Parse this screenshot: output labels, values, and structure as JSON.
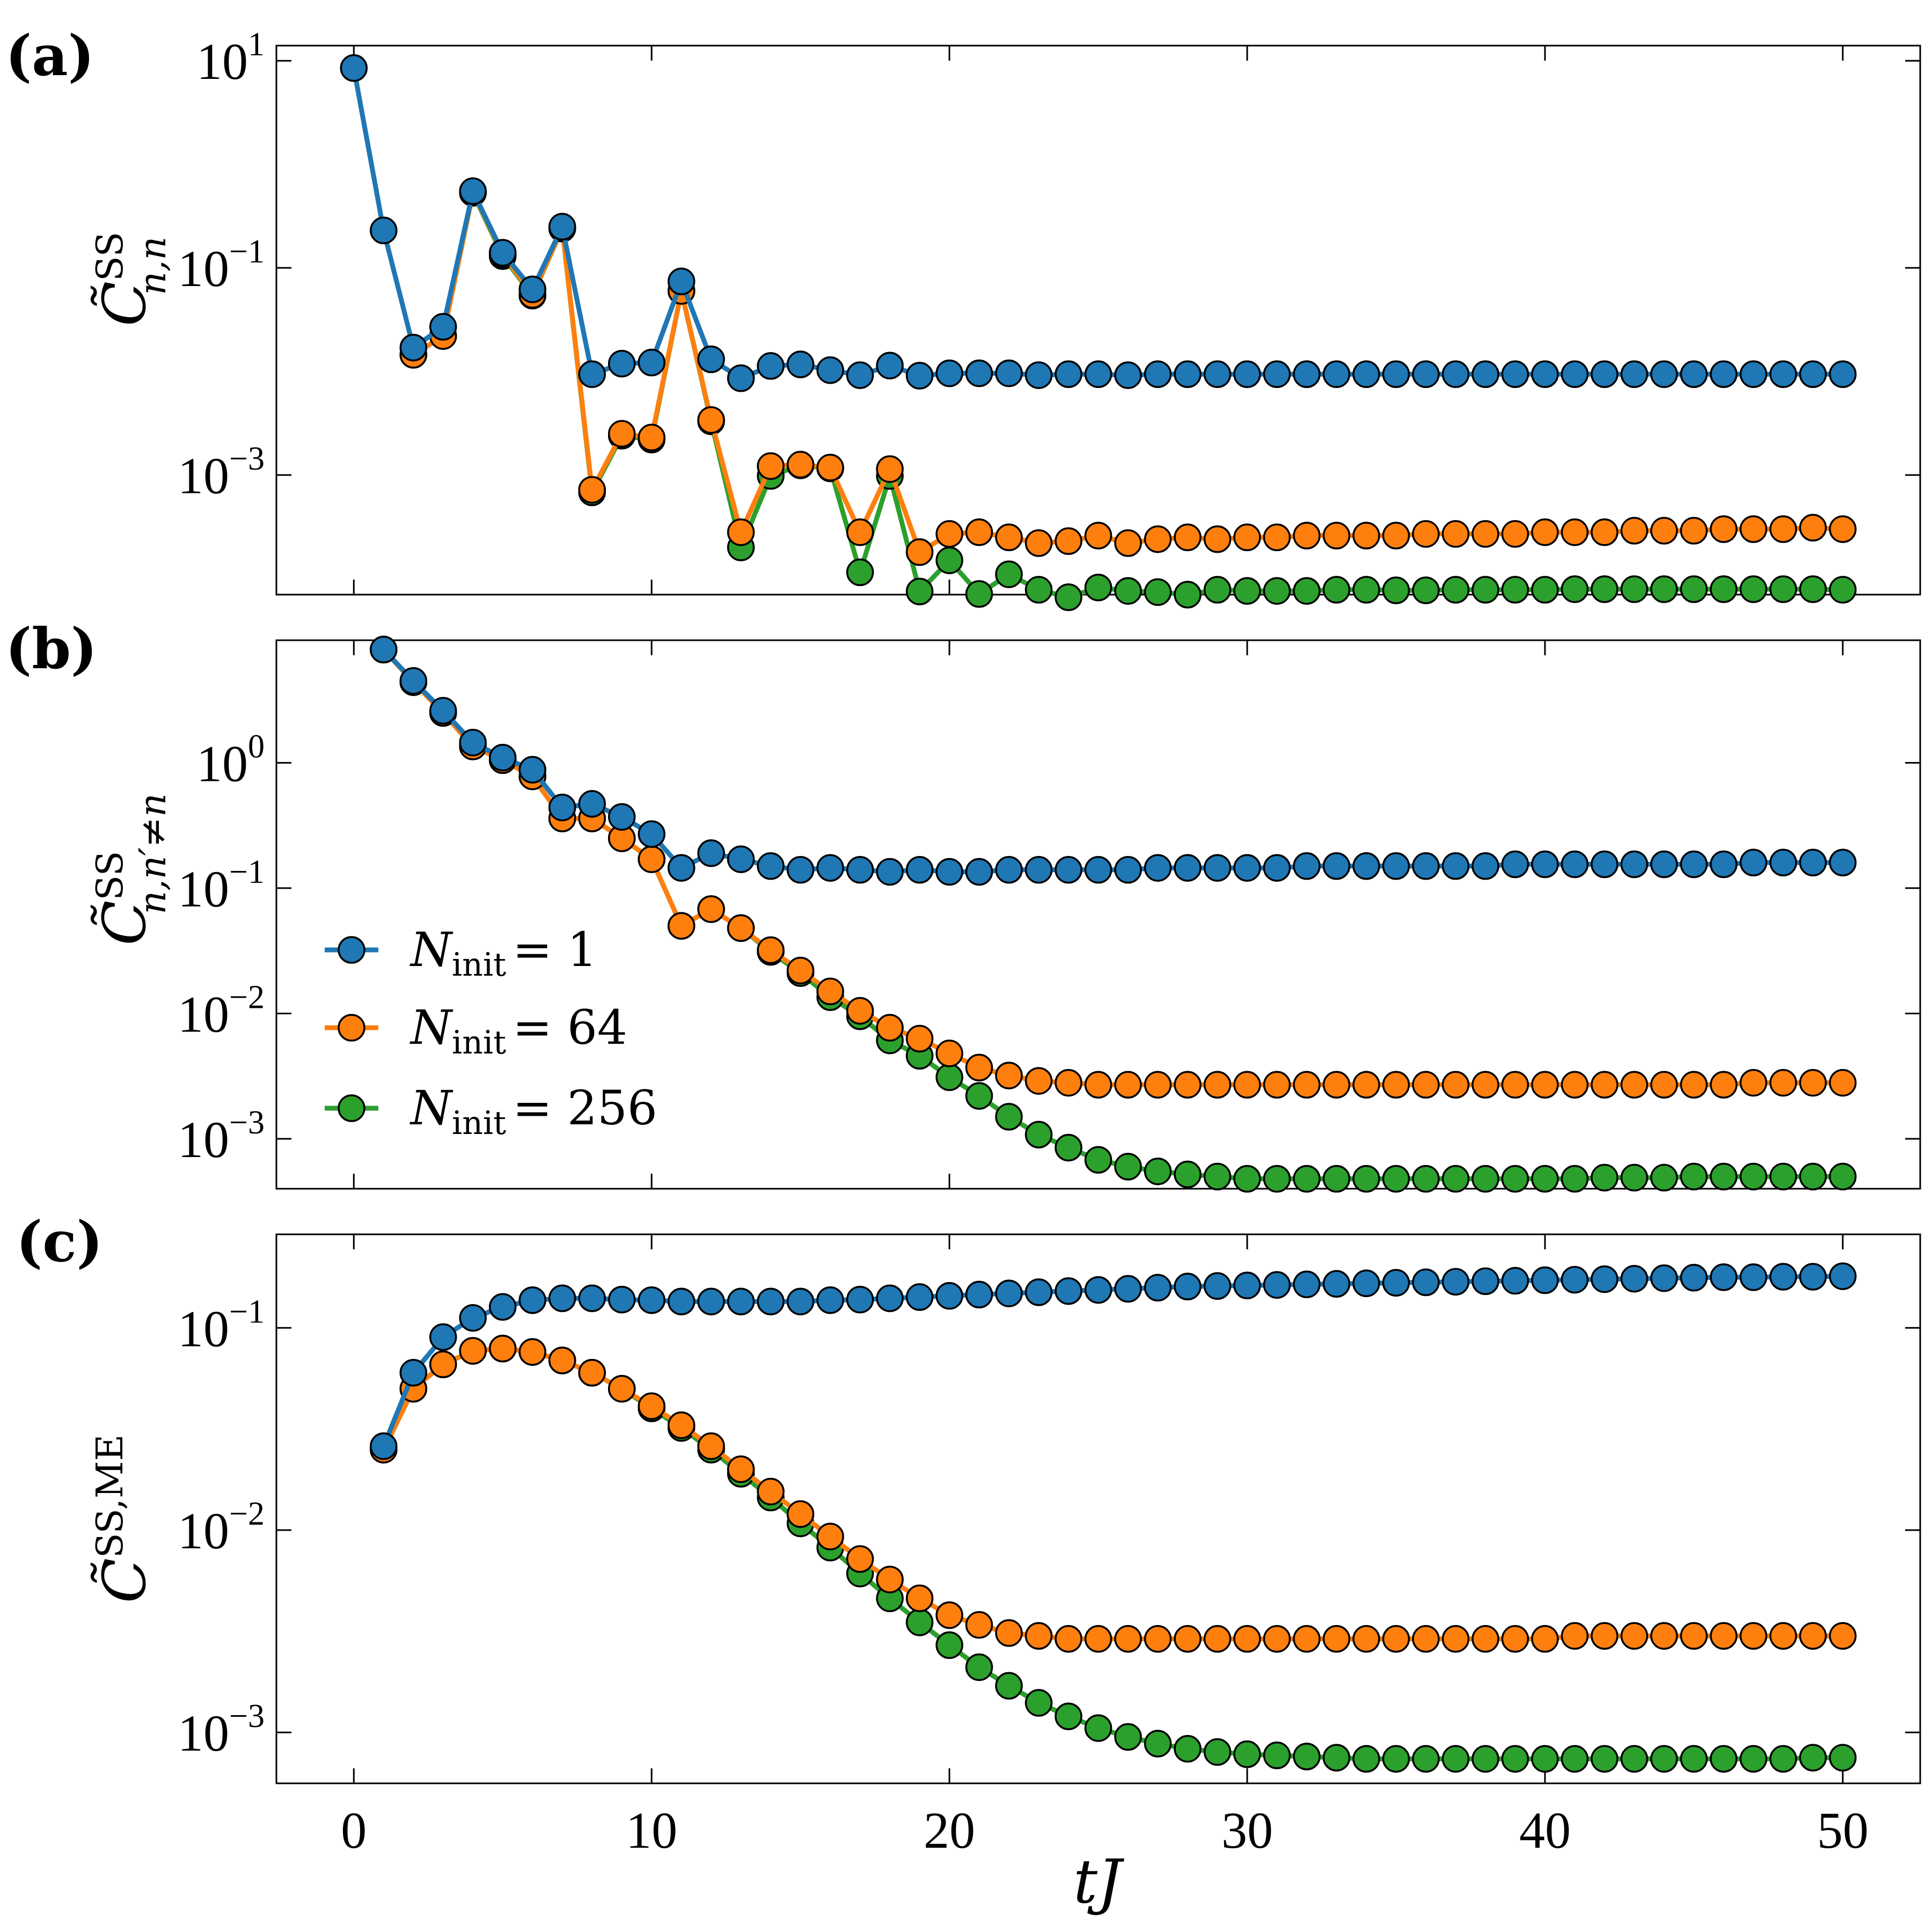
{
  "figure": {
    "xlabel": "tJ",
    "legend": {
      "prefix": "N",
      "subscript": "init",
      "entries": [
        {
          "label": "N_init = 1",
          "value_text": "= 1",
          "color": "#1f77b4"
        },
        {
          "label": "N_init = 64",
          "value_text": "= 64",
          "color": "#ff7f0e"
        },
        {
          "label": "N_init = 256",
          "value_text": "= 256",
          "color": "#2ca02c"
        }
      ]
    },
    "panels": [
      {
        "label": "(a)",
        "ylabel_main": "C̃",
        "ylabel_sup": "SS",
        "ylabel_sub": "n,n"
      },
      {
        "label": "(b)",
        "ylabel_main": "C̃",
        "ylabel_sup": "SS",
        "ylabel_sub": "n,n′≠n"
      },
      {
        "label": "(c)",
        "ylabel_main": "C̃",
        "ylabel_sup": "SS,ME",
        "ylabel_sub": ""
      }
    ]
  },
  "chart_data": [
    {
      "type": "line",
      "panel": "(a)",
      "xlabel": "",
      "ylabel": "C̃^SS_{n,n}",
      "yscale": "log",
      "xlim": [
        -2.6,
        52.6
      ],
      "ylim": [
        7e-05,
        14
      ],
      "xticks": [
        0,
        10,
        20,
        30,
        40,
        50
      ],
      "yticks": [
        {
          "base": "10",
          "exp": "1",
          "value": 10
        },
        {
          "base": "10",
          "exp": "−1",
          "value": 0.1
        },
        {
          "base": "10",
          "exp": "−3",
          "value": 0.001
        }
      ],
      "x": [
        0,
        1,
        2,
        3,
        4,
        5,
        6,
        7,
        8,
        9,
        10,
        11,
        12,
        13,
        14,
        15,
        16,
        17,
        18,
        19,
        20,
        21,
        22,
        23,
        24,
        25,
        26,
        27,
        28,
        29,
        30,
        31,
        32,
        33,
        34,
        35,
        36,
        37,
        38,
        39,
        40,
        41,
        42,
        43,
        44,
        45,
        46,
        47,
        48,
        49,
        50
      ],
      "series": [
        {
          "name": "N_init = 1",
          "color": "#1f77b4",
          "values": [
            8.5,
            0.23,
            0.017,
            0.027,
            0.55,
            0.14,
            0.062,
            0.25,
            0.0094,
            0.0119,
            0.0122,
            0.074,
            0.0131,
            0.0086,
            0.0113,
            0.0117,
            0.0103,
            0.0092,
            0.0114,
            0.0091,
            0.0096,
            0.0096,
            0.0096,
            0.0092,
            0.0094,
            0.0094,
            0.0092,
            0.0094,
            0.0094,
            0.0094,
            0.0094,
            0.0094,
            0.0094,
            0.0094,
            0.0094,
            0.0094,
            0.0094,
            0.0094,
            0.0094,
            0.0094,
            0.0094,
            0.0094,
            0.0094,
            0.0094,
            0.0094,
            0.0094,
            0.0094,
            0.0094,
            0.0094,
            0.0094,
            0.0094
          ]
        },
        {
          "name": "N_init = 64",
          "color": "#ff7f0e",
          "values": [
            null,
            null,
            0.0145,
            0.022,
            0.54,
            0.135,
            0.055,
            0.24,
            0.00072,
            0.0025,
            0.0023,
            0.06,
            0.0034,
            0.00028,
            0.00122,
            0.00126,
            0.00118,
            0.00028,
            0.00114,
            0.00018,
            0.00027,
            0.00028,
            0.00025,
            0.00022,
            0.00023,
            0.00026,
            0.00022,
            0.00024,
            0.00025,
            0.00024,
            0.00025,
            0.00025,
            0.00026,
            0.00026,
            0.00026,
            0.00026,
            0.00027,
            0.00027,
            0.00027,
            0.00027,
            0.00028,
            0.00028,
            0.00028,
            0.00029,
            0.00029,
            0.00029,
            0.0003,
            0.0003,
            0.0003,
            0.00031,
            0.0003
          ]
        },
        {
          "name": "N_init = 256",
          "color": "#2ca02c",
          "values": [
            null,
            null,
            0.0145,
            0.022,
            0.53,
            0.13,
            0.054,
            0.24,
            0.00068,
            0.0024,
            0.0022,
            0.06,
            0.0033,
            0.0002,
            0.00098,
            0.00124,
            0.00116,
            0.000115,
            0.00098,
            7.5e-05,
            0.00015,
            7.1e-05,
            0.00011,
            7.8e-05,
            6.6e-05,
            8.2e-05,
            7.6e-05,
            7.4e-05,
            7e-05,
            7.8e-05,
            7.6e-05,
            7.6e-05,
            7.6e-05,
            7.8e-05,
            7.8e-05,
            7.7e-05,
            7.7e-05,
            7.8e-05,
            7.8e-05,
            7.8e-05,
            7.8e-05,
            7.9e-05,
            7.9e-05,
            7.9e-05,
            7.9e-05,
            7.9e-05,
            7.9e-05,
            7.9e-05,
            7.9e-05,
            7.9e-05,
            7.8e-05
          ]
        }
      ]
    },
    {
      "type": "line",
      "panel": "(b)",
      "xlabel": "",
      "ylabel": "C̃^SS_{n,n'≠n}",
      "yscale": "log",
      "xlim": [
        -2.6,
        52.6
      ],
      "ylim": [
        0.0004,
        9.5
      ],
      "xticks": [
        0,
        10,
        20,
        30,
        40,
        50
      ],
      "yticks": [
        {
          "base": "10",
          "exp": "0",
          "value": 1
        },
        {
          "base": "10",
          "exp": "−1",
          "value": 0.1
        },
        {
          "base": "10",
          "exp": "−2",
          "value": 0.01
        },
        {
          "base": "10",
          "exp": "−3",
          "value": 0.001
        }
      ],
      "x": [
        1,
        2,
        3,
        4,
        5,
        6,
        7,
        8,
        9,
        10,
        11,
        12,
        13,
        14,
        15,
        16,
        17,
        18,
        19,
        20,
        21,
        22,
        23,
        24,
        25,
        26,
        27,
        28,
        29,
        30,
        31,
        32,
        33,
        34,
        35,
        36,
        37,
        38,
        39,
        40,
        41,
        42,
        43,
        44,
        45,
        46,
        47,
        48,
        49,
        50
      ],
      "series": [
        {
          "name": "N_init = 1",
          "color": "#1f77b4",
          "values": [
            8.0,
            4.5,
            2.6,
            1.45,
            1.1,
            0.88,
            0.44,
            0.47,
            0.37,
            0.27,
            0.145,
            0.19,
            0.17,
            0.15,
            0.14,
            0.145,
            0.14,
            0.135,
            0.14,
            0.135,
            0.135,
            0.14,
            0.14,
            0.14,
            0.14,
            0.14,
            0.145,
            0.145,
            0.145,
            0.145,
            0.145,
            0.15,
            0.15,
            0.15,
            0.15,
            0.15,
            0.15,
            0.15,
            0.155,
            0.155,
            0.155,
            0.155,
            0.155,
            0.155,
            0.155,
            0.155,
            0.16,
            0.16,
            0.16,
            0.16
          ]
        },
        {
          "name": "N_init = 64",
          "color": "#ff7f0e",
          "values": [
            8.0,
            4.4,
            2.5,
            1.35,
            1.05,
            0.78,
            0.36,
            0.36,
            0.25,
            0.17,
            0.05,
            0.068,
            0.048,
            0.032,
            0.022,
            0.015,
            0.0105,
            0.0077,
            0.0063,
            0.0048,
            0.0037,
            0.0032,
            0.0029,
            0.0028,
            0.0027,
            0.0027,
            0.0027,
            0.0027,
            0.0027,
            0.0027,
            0.0027,
            0.0027,
            0.0027,
            0.0027,
            0.0027,
            0.0027,
            0.0027,
            0.0027,
            0.0027,
            0.0027,
            0.0027,
            0.0027,
            0.0027,
            0.0027,
            0.0027,
            0.0027,
            0.0028,
            0.0028,
            0.0028,
            0.0028
          ]
        },
        {
          "name": "N_init = 256",
          "color": "#2ca02c",
          "values": [
            8.0,
            4.4,
            2.5,
            1.35,
            1.05,
            0.78,
            0.36,
            0.36,
            0.25,
            0.17,
            0.05,
            0.068,
            0.048,
            0.031,
            0.021,
            0.0135,
            0.0095,
            0.0061,
            0.0046,
            0.0031,
            0.0022,
            0.0015,
            0.00108,
            0.00085,
            0.00068,
            0.0006,
            0.00055,
            0.00052,
            0.0005,
            0.00048,
            0.00048,
            0.00048,
            0.00048,
            0.00048,
            0.00048,
            0.00048,
            0.00048,
            0.00048,
            0.00048,
            0.00048,
            0.00048,
            0.00049,
            0.00049,
            0.00049,
            0.0005,
            0.0005,
            0.0005,
            0.0005,
            0.0005,
            0.0005
          ]
        }
      ]
    },
    {
      "type": "line",
      "panel": "(c)",
      "xlabel": "tJ",
      "ylabel": "C̃^{SS,ME}",
      "yscale": "log",
      "xlim": [
        -2.6,
        52.6
      ],
      "ylim": [
        0.00056,
        0.29
      ],
      "xticks": [
        0,
        10,
        20,
        30,
        40,
        50
      ],
      "yticks": [
        {
          "base": "10",
          "exp": "−1",
          "value": 0.1
        },
        {
          "base": "10",
          "exp": "−2",
          "value": 0.01
        },
        {
          "base": "10",
          "exp": "−3",
          "value": 0.001
        }
      ],
      "x": [
        1,
        2,
        3,
        4,
        5,
        6,
        7,
        8,
        9,
        10,
        11,
        12,
        13,
        14,
        15,
        16,
        17,
        18,
        19,
        20,
        21,
        22,
        23,
        24,
        25,
        26,
        27,
        28,
        29,
        30,
        31,
        32,
        33,
        34,
        35,
        36,
        37,
        38,
        39,
        40,
        41,
        42,
        43,
        44,
        45,
        46,
        47,
        48,
        49,
        50
      ],
      "series": [
        {
          "name": "N_init = 1",
          "color": "#1f77b4",
          "values": [
            0.026,
            0.06,
            0.09,
            0.112,
            0.127,
            0.137,
            0.14,
            0.14,
            0.138,
            0.137,
            0.135,
            0.135,
            0.135,
            0.135,
            0.135,
            0.137,
            0.138,
            0.14,
            0.142,
            0.144,
            0.146,
            0.148,
            0.15,
            0.152,
            0.154,
            0.156,
            0.158,
            0.16,
            0.161,
            0.162,
            0.163,
            0.164,
            0.165,
            0.166,
            0.167,
            0.168,
            0.169,
            0.17,
            0.171,
            0.172,
            0.173,
            0.174,
            0.175,
            0.176,
            0.177,
            0.178,
            0.178,
            0.179,
            0.179,
            0.18
          ]
        },
        {
          "name": "N_init = 64",
          "color": "#ff7f0e",
          "values": [
            0.025,
            0.05,
            0.066,
            0.077,
            0.079,
            0.076,
            0.069,
            0.06,
            0.05,
            0.041,
            0.033,
            0.026,
            0.02,
            0.0155,
            0.012,
            0.0093,
            0.0072,
            0.0057,
            0.0046,
            0.0038,
            0.0034,
            0.0031,
            0.003,
            0.0029,
            0.0029,
            0.0029,
            0.0029,
            0.0029,
            0.0029,
            0.0029,
            0.0029,
            0.0029,
            0.0029,
            0.0029,
            0.0029,
            0.0029,
            0.0029,
            0.0029,
            0.0029,
            0.0029,
            0.003,
            0.003,
            0.003,
            0.003,
            0.003,
            0.003,
            0.003,
            0.003,
            0.003,
            0.003
          ]
        },
        {
          "name": "N_init = 256",
          "color": "#2ca02c",
          "values": [
            0.025,
            0.05,
            0.066,
            0.077,
            0.079,
            0.076,
            0.069,
            0.06,
            0.05,
            0.04,
            0.032,
            0.025,
            0.019,
            0.0145,
            0.0108,
            0.0082,
            0.0061,
            0.0046,
            0.0035,
            0.0027,
            0.0021,
            0.0017,
            0.0014,
            0.0012,
            0.00105,
            0.00095,
            0.00088,
            0.00083,
            0.0008,
            0.00078,
            0.00077,
            0.00076,
            0.00075,
            0.00074,
            0.00074,
            0.00074,
            0.00074,
            0.00074,
            0.00074,
            0.00074,
            0.00074,
            0.00074,
            0.00074,
            0.00074,
            0.00074,
            0.00074,
            0.00074,
            0.00074,
            0.00075,
            0.00075
          ]
        }
      ]
    }
  ]
}
